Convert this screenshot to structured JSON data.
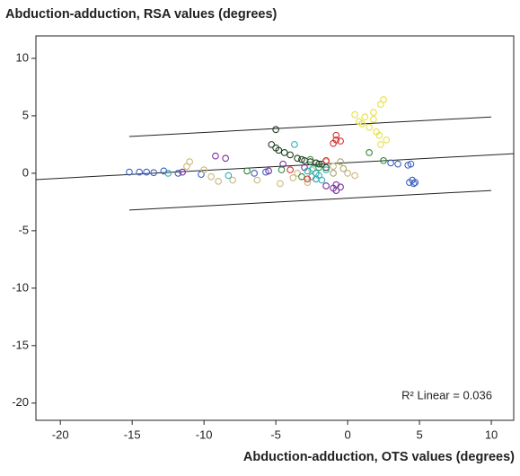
{
  "chart_data": {
    "type": "scatter",
    "title": "Abduction-adduction, RSA values (degrees)",
    "x_label": "Abduction-adduction, OTS values (degrees)",
    "annotation": "R² Linear = 0.036",
    "xlim": [
      -21.7,
      11.56
    ],
    "ylim": [
      -21.5,
      11.95
    ],
    "xticks": [
      -20,
      -15,
      -10,
      -5,
      0,
      5,
      10
    ],
    "yticks": [
      -20,
      -15,
      -10,
      -5,
      0,
      5,
      10
    ],
    "grid": false,
    "series": [
      {
        "color": "#3e62c4",
        "x": [
          -15.2,
          -14.5,
          -14,
          -13.5,
          -12.8,
          -11.8,
          -10.2,
          -6.5,
          -5.7,
          4.5,
          4.7,
          4.3,
          4.6,
          4.2,
          4.4,
          3.5,
          3.0
        ],
        "y": [
          0.1,
          0.1,
          0.1,
          0.05,
          0.2,
          0,
          -0.1,
          0,
          0.1,
          -0.6,
          -0.8,
          -0.8,
          -0.9,
          0.7,
          0.8,
          0.8,
          0.9
        ]
      },
      {
        "color": "#7a2f9e",
        "x": [
          -11.5,
          -9.2,
          -8.5,
          -5.5,
          -4.5,
          -3,
          -1.5,
          -1.0,
          -0.8,
          -0.5,
          -0.8,
          -2.2
        ],
        "y": [
          0.1,
          1.5,
          1.3,
          0.2,
          0.8,
          0.5,
          -1.1,
          -1.3,
          -1.0,
          -1.2,
          -1.5,
          -0.5
        ]
      },
      {
        "color": "#c9b87e",
        "x": [
          -11,
          -11.2,
          -10,
          -9.5,
          -9,
          -8,
          -6.3,
          -4.7,
          -3.5,
          -2.5,
          -1.5,
          -1,
          0,
          0.5,
          -2.8,
          -3.8
        ],
        "y": [
          1,
          0.6,
          0.3,
          -0.3,
          -0.7,
          -0.6,
          -0.6,
          -0.9,
          0,
          0.3,
          1.0,
          0.6,
          0,
          -0.2,
          -0.8,
          -0.4
        ]
      },
      {
        "color": "#1c3f1f",
        "x": [
          -5,
          -5.3,
          -5,
          -4.8,
          -4.4,
          -4,
          -3.5,
          -3.0,
          -2.6,
          -2.2,
          -1.8,
          -1.5,
          -2,
          -3.2
        ],
        "y": [
          3.8,
          2.5,
          2.2,
          2.0,
          1.8,
          1.6,
          1.3,
          1.1,
          1.0,
          0.9,
          0.8,
          0.5,
          0.8,
          1.2
        ]
      },
      {
        "color": "#2e8b3a",
        "x": [
          -4.6,
          -7,
          -2.6,
          -2,
          1.5,
          2.5,
          -3.2
        ],
        "y": [
          0.3,
          0.2,
          1.2,
          0.5,
          1.8,
          1.1,
          -0.3
        ]
      },
      {
        "color": "#2fb0b4",
        "x": [
          -3.7,
          -2.5,
          -2.2,
          -2.0,
          -1.8,
          -2.4,
          -2.8,
          -1.5,
          -12.5,
          -8.3,
          -2.2
        ],
        "y": [
          2.5,
          -0.3,
          -0.5,
          -0.2,
          -0.6,
          0.4,
          0.2,
          0.3,
          0,
          -0.2,
          0
        ]
      },
      {
        "color": "#d23030",
        "x": [
          -0.8,
          -0.8,
          -1.0,
          -0.5,
          -1.5,
          -4.0,
          -2.8
        ],
        "y": [
          3.3,
          2.9,
          2.6,
          2.8,
          1.1,
          0.3,
          -0.5
        ]
      },
      {
        "color": "#e6e04a",
        "x": [
          2.5,
          2.3,
          1.8,
          1.2,
          0.8,
          0.5,
          1.5,
          2.0,
          2.7,
          2.3,
          1.0,
          1.8,
          2.2
        ],
        "y": [
          6.4,
          6.0,
          5.3,
          4.9,
          4.5,
          5.1,
          4.0,
          3.6,
          2.9,
          2.5,
          4.3,
          4.7,
          3.3
        ]
      },
      {
        "color": "#a8a86a",
        "x": [
          -0.3,
          -0.5,
          -1
        ],
        "y": [
          0.4,
          1.0,
          0.0
        ]
      }
    ],
    "lines": [
      {
        "x": [
          -21.7,
          11.56
        ],
        "y": [
          -0.55,
          1.7
        ]
      },
      {
        "x": [
          -15.2,
          10
        ],
        "y": [
          3.2,
          4.9
        ]
      },
      {
        "x": [
          -15.2,
          10
        ],
        "y": [
          -3.2,
          -1.5
        ]
      }
    ]
  }
}
